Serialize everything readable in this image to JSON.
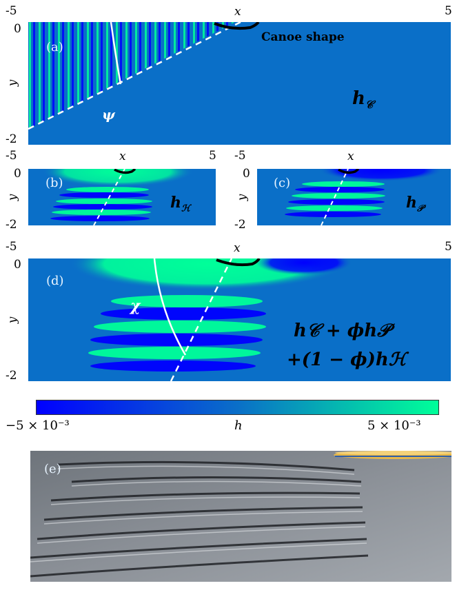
{
  "panels": {
    "a": {
      "label": "(a)",
      "x_min_tick": "-5",
      "x_max_tick": "5",
      "x_axis_label": "x",
      "y_axis_label": "y",
      "y_top_tick": "0",
      "y_bottom_tick": "-2",
      "annotation": "Canoe shape",
      "angle_symbol": "ψ",
      "field_symbol": "h",
      "field_subscript": "𝒞"
    },
    "b": {
      "label": "(b)",
      "x_axis_label": "x",
      "y_axis_label": "y",
      "y_top_tick": "0",
      "y_bottom_tick": "-2",
      "field_symbol": "h",
      "field_subscript": "ℋ"
    },
    "c": {
      "label": "(c)",
      "x_min_tick": "-5",
      "x_axis_label": "x",
      "y_axis_label": "y",
      "y_top_tick": "0",
      "y_bottom_tick": "-2",
      "field_symbol": "h",
      "field_subscript": "𝒫"
    },
    "b_axis": {
      "x_min_tick": "-5",
      "x_max_tick": "5"
    },
    "d": {
      "label": "(d)",
      "x_min_tick": "-5",
      "x_max_tick": "5",
      "x_axis_label": "x",
      "y_axis_label": "y",
      "y_top_tick": "0",
      "y_bottom_tick": "-2",
      "angle_symbol": "χ",
      "formula_line1": "h𝒞 + ϕh𝒫",
      "formula_line2": "+(1 − ϕ)hℋ"
    },
    "e": {
      "label": "(e)"
    }
  },
  "colorbar": {
    "min_label": "−5 × 10⁻³",
    "mid_label": "h",
    "max_label": "5 × 10⁻³",
    "colors": [
      "#0000ff",
      "#0a6fc8",
      "#00ff99"
    ]
  },
  "colors": {
    "background_field": "#0a6fc8",
    "positive": "#00ff99",
    "negative": "#0000ff",
    "overlay_line": "#ffffff",
    "hull": "#000000"
  }
}
